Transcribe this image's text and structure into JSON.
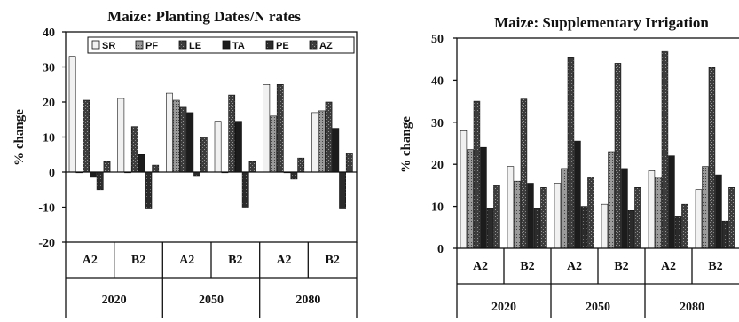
{
  "series_fills": [
    "#f1f1f1",
    "#8a8a8a",
    "#3e3e3e",
    "#1c1c1c",
    "#2a2a2a",
    "#555555"
  ],
  "chart_data": [
    {
      "type": "bar",
      "title": "Maize: Planting Dates/N rates",
      "ylabel": "% change",
      "ylim": [
        -20,
        40
      ],
      "yticks": [
        "40",
        "30",
        "20",
        "10",
        "0",
        "-10",
        "-20"
      ],
      "categories": [
        "A2",
        "B2",
        "A2",
        "B2",
        "A2",
        "B2"
      ],
      "groups": [
        "2020",
        "2050",
        "2080"
      ],
      "legend": "top-right, inside plot",
      "series": [
        {
          "name": "SR",
          "values": [
            33,
            21,
            22.5,
            14.5,
            25,
            17
          ]
        },
        {
          "name": "PF",
          "values": [
            0,
            0,
            20.5,
            0,
            16,
            17.5
          ]
        },
        {
          "name": "LE",
          "values": [
            20.5,
            13,
            18.5,
            22,
            25,
            20
          ]
        },
        {
          "name": "TA",
          "values": [
            -1.5,
            5,
            17,
            14.5,
            0,
            12.5
          ]
        },
        {
          "name": "PE",
          "values": [
            -5,
            -10.5,
            -1,
            -10,
            -2,
            -10.5
          ]
        },
        {
          "name": "AZ",
          "values": [
            3,
            2,
            10,
            3,
            4,
            5.5
          ]
        }
      ]
    },
    {
      "type": "bar",
      "title": "Maize: Supplementary Irrigation",
      "ylabel": "% change",
      "ylim": [
        0,
        50
      ],
      "yticks": [
        "50",
        "40",
        "30",
        "20",
        "10",
        "0"
      ],
      "categories": [
        "A2",
        "B2",
        "A2",
        "B2",
        "A2",
        "B2"
      ],
      "groups": [
        "2020",
        "2050",
        "2080"
      ],
      "series": [
        {
          "values": [
            28,
            19.5,
            15.5,
            10.5,
            18.5,
            14
          ]
        },
        {
          "values": [
            23.5,
            16,
            19,
            23,
            17,
            19.5
          ]
        },
        {
          "values": [
            35,
            35.5,
            45.5,
            44,
            47,
            43
          ]
        },
        {
          "values": [
            24,
            15.5,
            25.5,
            19,
            22,
            17.5
          ]
        },
        {
          "values": [
            9.5,
            9.5,
            10,
            9,
            7.5,
            6.5
          ]
        },
        {
          "values": [
            15,
            14.5,
            17,
            14.5,
            10.5,
            14.5
          ]
        }
      ]
    }
  ]
}
